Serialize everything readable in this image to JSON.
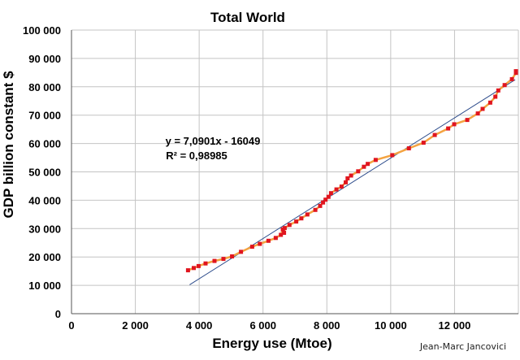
{
  "chart_data": {
    "type": "scatter",
    "title": "Total World",
    "xlabel": "Energy use (Mtoe)",
    "ylabel": "GDP billion constant $",
    "xlim": [
      0,
      14000
    ],
    "ylim": [
      0,
      100000
    ],
    "x_ticks": [
      0,
      2000,
      4000,
      6000,
      8000,
      10000,
      12000
    ],
    "x_tick_labels": [
      "0",
      "2 000",
      "4 000",
      "6 000",
      "8 000",
      "10 000",
      "12 000"
    ],
    "y_ticks": [
      0,
      10000,
      20000,
      30000,
      40000,
      50000,
      60000,
      70000,
      80000,
      90000,
      100000
    ],
    "y_tick_labels": [
      "0",
      "10 000",
      "20 000",
      "30 000",
      "40 000",
      "50 000",
      "60 000",
      "70 000",
      "80 000",
      "90 000",
      "100 000"
    ],
    "grid": true,
    "legend": "none",
    "series": [
      {
        "color": "#e0151f",
        "line_color": "#f4a340",
        "points": [
          [
            3650,
            15300
          ],
          [
            3830,
            16100
          ],
          [
            3980,
            16800
          ],
          [
            4200,
            17700
          ],
          [
            4480,
            18600
          ],
          [
            4760,
            19300
          ],
          [
            5030,
            20200
          ],
          [
            5310,
            21800
          ],
          [
            5660,
            23600
          ],
          [
            5900,
            24600
          ],
          [
            6170,
            25700
          ],
          [
            6400,
            26700
          ],
          [
            6560,
            27800
          ],
          [
            6620,
            29700
          ],
          [
            6660,
            28500
          ],
          [
            6680,
            30200
          ],
          [
            6830,
            31300
          ],
          [
            7040,
            32500
          ],
          [
            7200,
            33600
          ],
          [
            7390,
            35000
          ],
          [
            7640,
            36600
          ],
          [
            7790,
            38000
          ],
          [
            7880,
            39200
          ],
          [
            7960,
            40200
          ],
          [
            8050,
            41200
          ],
          [
            8130,
            42500
          ],
          [
            8300,
            43800
          ],
          [
            8460,
            44800
          ],
          [
            8590,
            46300
          ],
          [
            8650,
            47700
          ],
          [
            8760,
            48700
          ],
          [
            8980,
            50200
          ],
          [
            9160,
            51800
          ],
          [
            9280,
            52800
          ],
          [
            9530,
            54200
          ],
          [
            10050,
            55900
          ],
          [
            10570,
            58300
          ],
          [
            11030,
            60300
          ],
          [
            11380,
            63000
          ],
          [
            11800,
            65300
          ],
          [
            11990,
            66800
          ],
          [
            12400,
            68300
          ],
          [
            12730,
            70600
          ],
          [
            12880,
            72200
          ],
          [
            13120,
            74400
          ],
          [
            13280,
            76500
          ],
          [
            13370,
            78700
          ],
          [
            13570,
            80600
          ],
          [
            13800,
            82700
          ],
          [
            14000,
            84900
          ],
          [
            14120,
            85500
          ]
        ]
      }
    ],
    "trendline": {
      "slope": 7.0901,
      "intercept": -16049,
      "x_range": [
        3700,
        13900
      ],
      "color": "#2b4a8a"
    },
    "annotations": [
      "y = 7,0901x - 16049",
      "R² = 0,98985"
    ]
  },
  "credit": "Jean-Marc Jancovici"
}
